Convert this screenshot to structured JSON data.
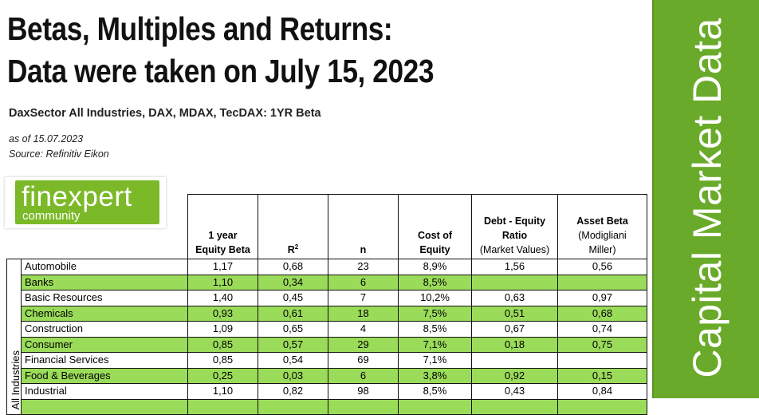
{
  "header": {
    "title_line1": "Betas, Multiples and Returns:",
    "title_line2": "Data were taken on July 15, 2023",
    "subtitle": "DaxSector All Industries, DAX, MDAX, TecDAX: 1YR Beta",
    "as_of": "as of 15.07.2023",
    "source": "Source: Refinitiv Eikon"
  },
  "logo": {
    "word": "finexpert",
    "sub": "community",
    "color": "#7cb928"
  },
  "sidebar": {
    "text": "Capital Market Data",
    "color": "#6aaa2a"
  },
  "table": {
    "group_label": "All Industries",
    "columns": [
      {
        "line1": "1 year",
        "line2": "Equity Beta"
      },
      {
        "label": "R",
        "sup": "2"
      },
      {
        "label": "n"
      },
      {
        "line1": "Cost of",
        "line2": "Equity"
      },
      {
        "line1": "Debt - Equity",
        "line2": "Ratio",
        "line3": "(Market Values)"
      },
      {
        "line1": "Asset Beta",
        "line2": "(Modigliani",
        "line3": "Miller)"
      }
    ],
    "rows": [
      {
        "name": "Automobile",
        "beta": "1,17",
        "r2": "0,68",
        "n": "23",
        "coe": "8,9%",
        "de": "1,56",
        "asset": "0,56",
        "highlight": false
      },
      {
        "name": "Banks",
        "beta": "1,10",
        "r2": "0,34",
        "n": "6",
        "coe": "8,5%",
        "de": "",
        "asset": "",
        "highlight": true
      },
      {
        "name": "Basic Resources",
        "beta": "1,40",
        "r2": "0,45",
        "n": "7",
        "coe": "10,2%",
        "de": "0,63",
        "asset": "0,97",
        "highlight": false
      },
      {
        "name": "Chemicals",
        "beta": "0,93",
        "r2": "0,61",
        "n": "18",
        "coe": "7,5%",
        "de": "0,51",
        "asset": "0,68",
        "highlight": true
      },
      {
        "name": "Construction",
        "beta": "1,09",
        "r2": "0,65",
        "n": "4",
        "coe": "8,5%",
        "de": "0,67",
        "asset": "0,74",
        "highlight": false
      },
      {
        "name": "Consumer",
        "beta": "0,85",
        "r2": "0,57",
        "n": "29",
        "coe": "7,1%",
        "de": "0,18",
        "asset": "0,75",
        "highlight": true
      },
      {
        "name": "Financial Services",
        "beta": "0,85",
        "r2": "0,54",
        "n": "69",
        "coe": "7,1%",
        "de": "",
        "asset": "",
        "highlight": false
      },
      {
        "name": "Food & Beverages",
        "beta": "0,25",
        "r2": "0,03",
        "n": "6",
        "coe": "3,8%",
        "de": "0,92",
        "asset": "0,15",
        "highlight": true
      },
      {
        "name": "Industrial",
        "beta": "1,10",
        "r2": "0,82",
        "n": "98",
        "coe": "8,5%",
        "de": "0,43",
        "asset": "0,84",
        "highlight": false
      },
      {
        "name": "",
        "beta": "",
        "r2": "",
        "n": "",
        "coe": "",
        "de": "",
        "asset": "",
        "highlight": true
      }
    ]
  }
}
